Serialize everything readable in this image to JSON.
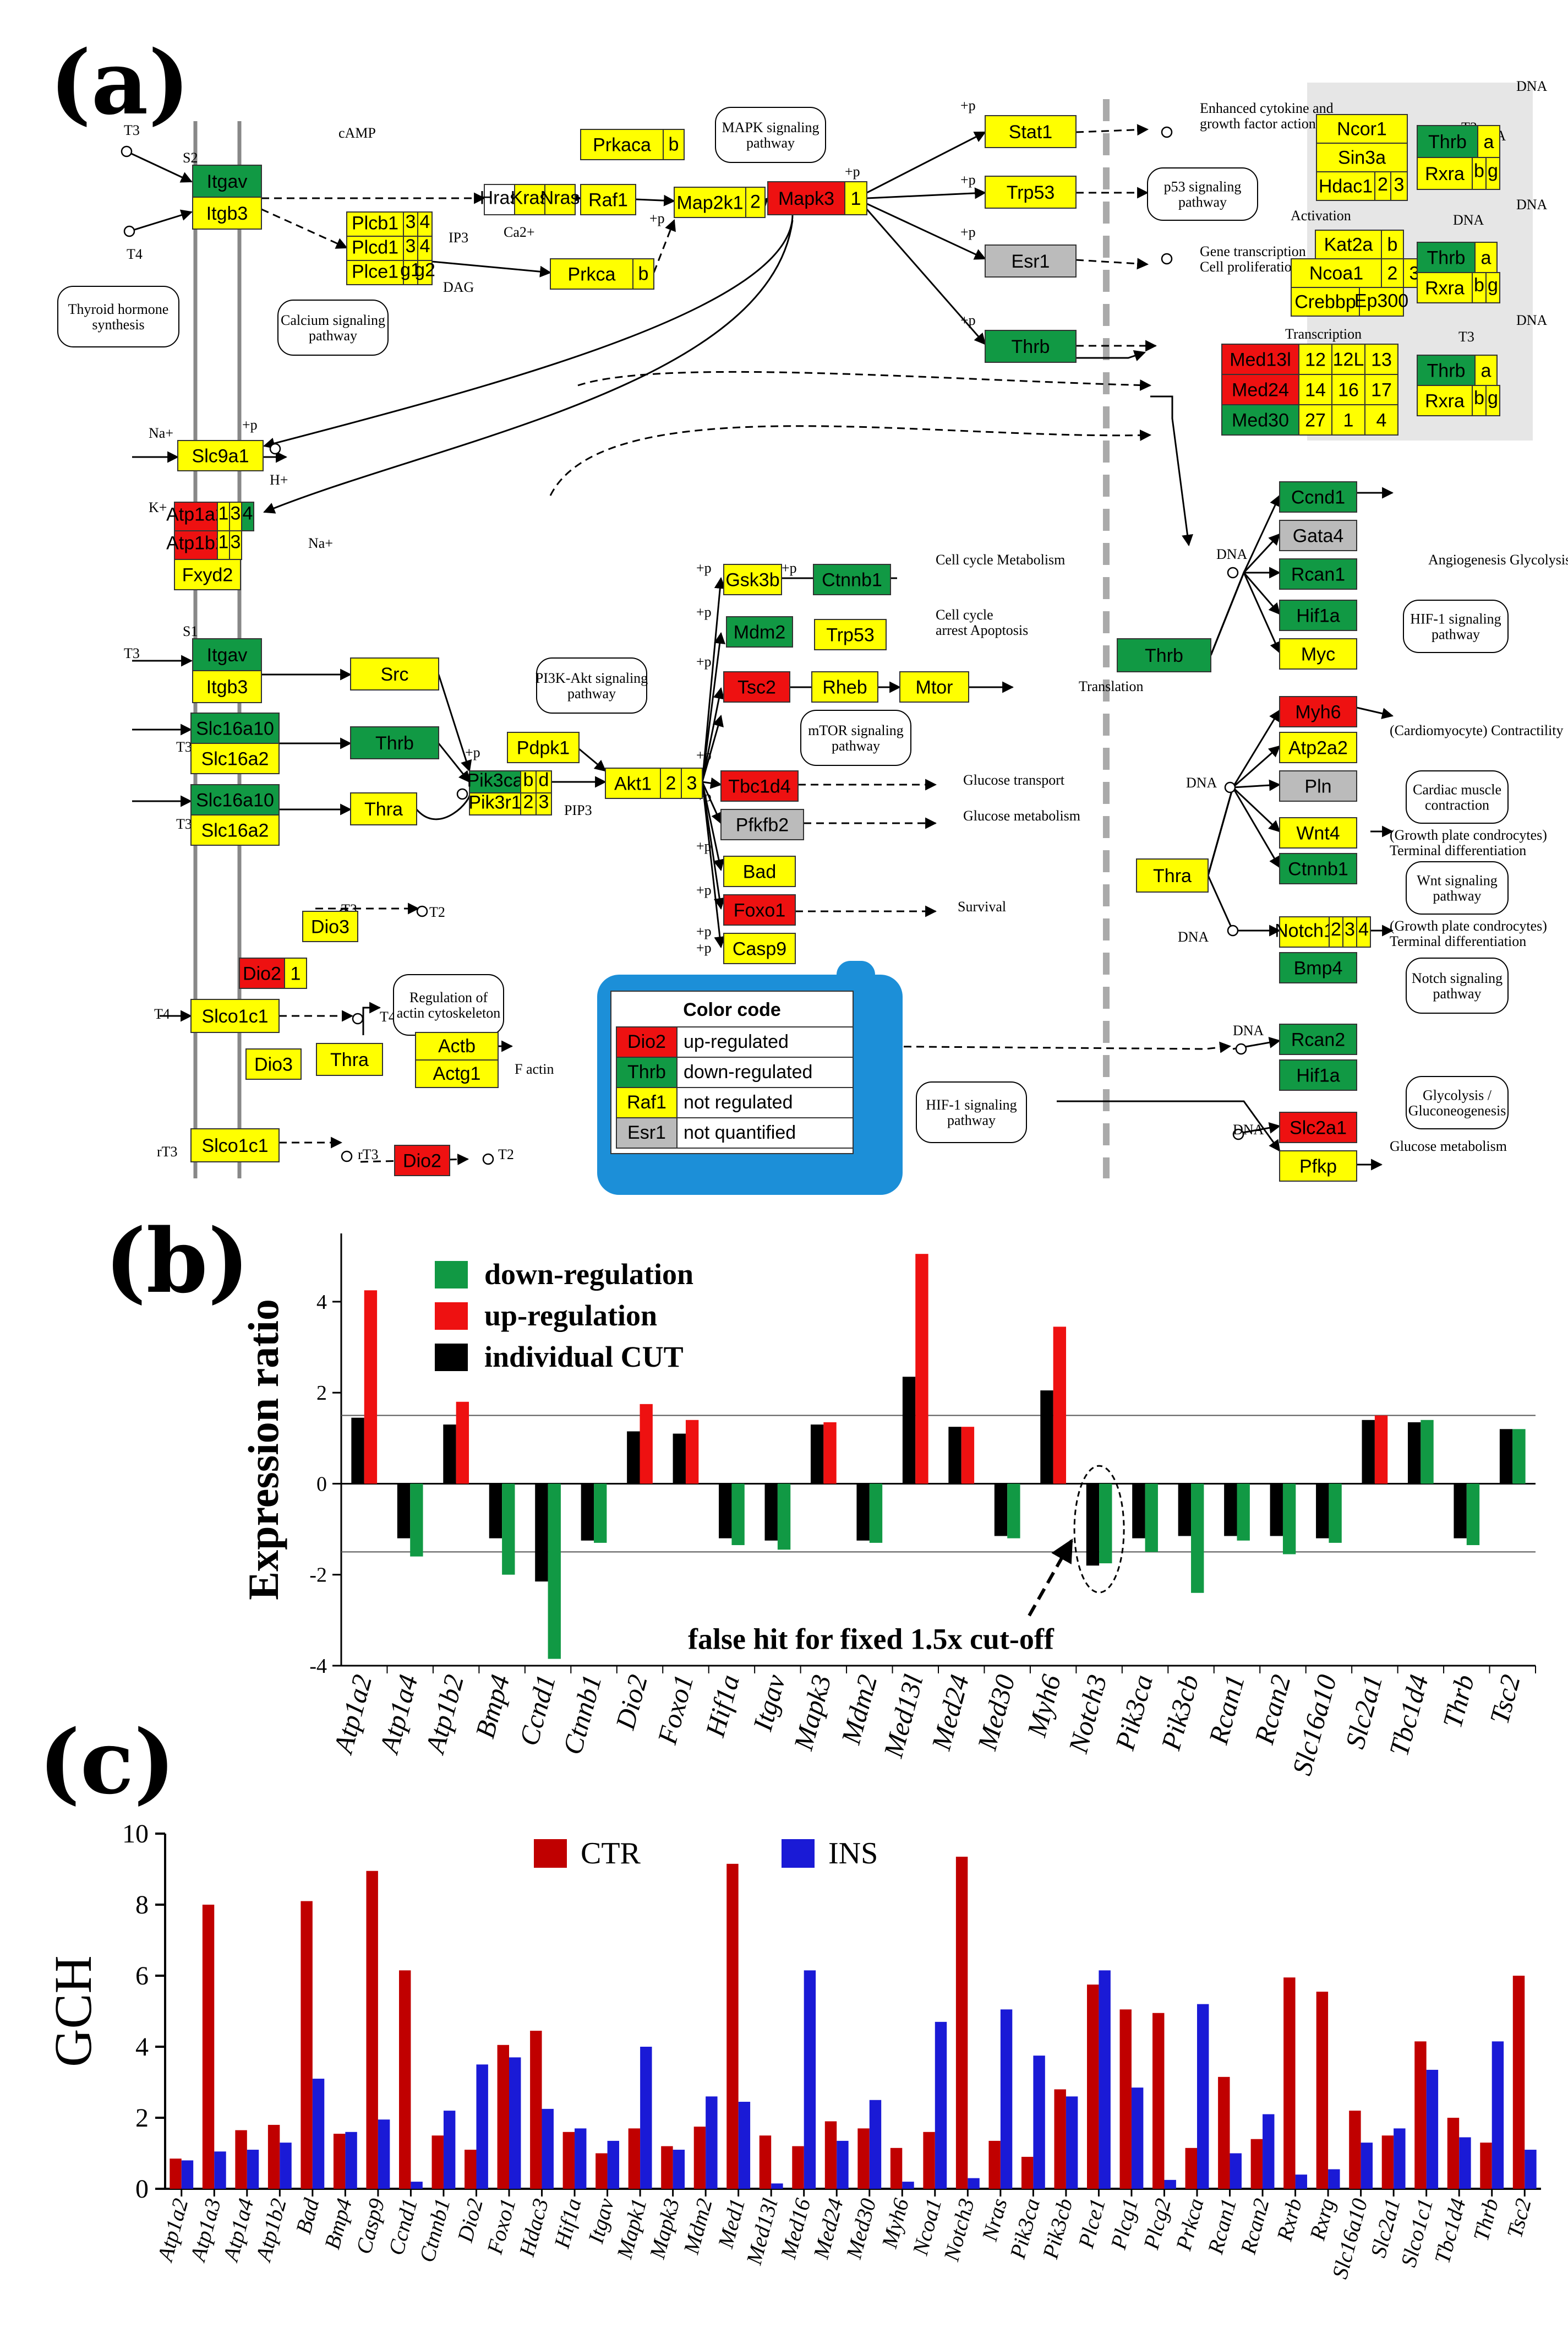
{
  "panels": {
    "a": "(a)",
    "b": "(b)",
    "c": "(c)"
  },
  "colors": {
    "up": "#ee1111",
    "down": "#119944",
    "notreg": "#ffff00",
    "notquant": "#bbbbbb",
    "cut": "#000000",
    "ctr": "#c00000",
    "ins": "#1a1ad6"
  },
  "pathway": {
    "legend": {
      "title": "Color code",
      "items": [
        {
          "gene": "Dio2",
          "label": "up-regulated",
          "status": "up"
        },
        {
          "gene": "Thrb",
          "label": "down-regulated",
          "status": "down"
        },
        {
          "gene": "Raf1",
          "label": "not regulated",
          "status": "notreg"
        },
        {
          "gene": "Esr1",
          "label": "not quantified",
          "status": "notquant"
        }
      ]
    },
    "genes": [
      {
        "t": "Itgav",
        "s": "down"
      },
      {
        "t": "Itgb3",
        "s": "notreg"
      },
      {
        "t": "Slc9a1",
        "s": "notreg"
      },
      {
        "t": "Atp1a2",
        "s": "up"
      },
      {
        "t": "1",
        "s": "notreg"
      },
      {
        "t": "3",
        "s": "notreg"
      },
      {
        "t": "4",
        "s": "down"
      },
      {
        "t": "Atp1b2",
        "s": "up"
      },
      {
        "t": "1",
        "s": "notreg"
      },
      {
        "t": "3",
        "s": "notreg"
      },
      {
        "t": "Fxyd2",
        "s": "notreg"
      },
      {
        "t": "Itgav",
        "s": "down"
      },
      {
        "t": "Itgb3",
        "s": "notreg"
      },
      {
        "t": "Slc16a10",
        "s": "down"
      },
      {
        "t": "Slc16a2",
        "s": "notreg"
      },
      {
        "t": "Slc16a10",
        "s": "down"
      },
      {
        "t": "Slc16a2",
        "s": "notreg"
      },
      {
        "t": "Slco1c1",
        "s": "notreg"
      },
      {
        "t": "Slco1c1",
        "s": "notreg"
      },
      {
        "t": "Dio2",
        "s": "up"
      },
      {
        "t": "1",
        "s": "notreg"
      },
      {
        "t": "Dio3",
        "s": "notreg"
      },
      {
        "t": "Dio3",
        "s": "notreg"
      },
      {
        "t": "Dio2",
        "s": "up"
      },
      {
        "t": "Thrb",
        "s": "down"
      },
      {
        "t": "Thra",
        "s": "notreg"
      },
      {
        "t": "Src",
        "s": "notreg"
      },
      {
        "t": "Thra",
        "s": "notreg"
      },
      {
        "t": "Actb",
        "s": "notreg"
      },
      {
        "t": "Actg1",
        "s": "notreg"
      },
      {
        "t": "Plcb1",
        "s": "notreg"
      },
      {
        "t": "3",
        "s": "notreg"
      },
      {
        "t": "4",
        "s": "notreg"
      },
      {
        "t": "Plcd1",
        "s": "notreg"
      },
      {
        "t": "3",
        "s": "notreg"
      },
      {
        "t": "4",
        "s": "notreg"
      },
      {
        "t": "Plce1",
        "s": "notreg"
      },
      {
        "t": "g1",
        "s": "notreg"
      },
      {
        "t": "g2",
        "s": "notreg"
      },
      {
        "t": "Prkca",
        "s": "notreg"
      },
      {
        "t": "b",
        "s": "notreg"
      },
      {
        "t": "Prkaca",
        "s": "notreg"
      },
      {
        "t": "b",
        "s": "notreg"
      },
      {
        "t": "Hras",
        "s": "white"
      },
      {
        "t": "Kras",
        "s": "notreg"
      },
      {
        "t": "Nras",
        "s": "notreg"
      },
      {
        "t": "Raf1",
        "s": "notreg"
      },
      {
        "t": "Map2k1",
        "s": "notreg"
      },
      {
        "t": "2",
        "s": "notreg"
      },
      {
        "t": "Mapk3",
        "s": "up"
      },
      {
        "t": "1",
        "s": "notreg"
      },
      {
        "t": "Stat1",
        "s": "notreg"
      },
      {
        "t": "Trp53",
        "s": "notreg"
      },
      {
        "t": "Esr1",
        "s": "notquant"
      },
      {
        "t": "Thrb",
        "s": "down"
      },
      {
        "t": "Pik3ca",
        "s": "down"
      },
      {
        "t": "b",
        "s": "notreg"
      },
      {
        "t": "d",
        "s": "notreg"
      },
      {
        "t": "Pik3r1",
        "s": "notreg"
      },
      {
        "t": "2",
        "s": "notreg"
      },
      {
        "t": "3",
        "s": "notreg"
      },
      {
        "t": "Pdpk1",
        "s": "notreg"
      },
      {
        "t": "Akt1",
        "s": "notreg"
      },
      {
        "t": "2",
        "s": "notreg"
      },
      {
        "t": "3",
        "s": "notreg"
      },
      {
        "t": "Gsk3b",
        "s": "notreg"
      },
      {
        "t": "Ctnnb1",
        "s": "down"
      },
      {
        "t": "Mdm2",
        "s": "down"
      },
      {
        "t": "Trp53",
        "s": "notreg"
      },
      {
        "t": "Tsc2",
        "s": "up"
      },
      {
        "t": "Rheb",
        "s": "notreg"
      },
      {
        "t": "Mtor",
        "s": "notreg"
      },
      {
        "t": "Tbc1d4",
        "s": "up"
      },
      {
        "t": "Pfkfb2",
        "s": "notquant"
      },
      {
        "t": "Bad",
        "s": "notreg"
      },
      {
        "t": "Foxo1",
        "s": "up"
      },
      {
        "t": "Casp9",
        "s": "notreg"
      },
      {
        "t": "Ncor1",
        "s": "notreg"
      },
      {
        "t": "Sin3a",
        "s": "notreg"
      },
      {
        "t": "Hdac1",
        "s": "notreg"
      },
      {
        "t": "2",
        "s": "notreg"
      },
      {
        "t": "3",
        "s": "notreg"
      },
      {
        "t": "Thrb",
        "s": "down"
      },
      {
        "t": "a",
        "s": "notreg"
      },
      {
        "t": "Rxra",
        "s": "notreg"
      },
      {
        "t": "b",
        "s": "notreg"
      },
      {
        "t": "g",
        "s": "notreg"
      },
      {
        "t": "Kat2a",
        "s": "notreg"
      },
      {
        "t": "b",
        "s": "notreg"
      },
      {
        "t": "Ncoa1",
        "s": "notreg"
      },
      {
        "t": "2",
        "s": "notreg"
      },
      {
        "t": "3",
        "s": "notreg"
      },
      {
        "t": "Crebbp",
        "s": "notreg"
      },
      {
        "t": "Ep300",
        "s": "notreg"
      },
      {
        "t": "Thrb",
        "s": "down"
      },
      {
        "t": "a",
        "s": "notreg"
      },
      {
        "t": "Rxra",
        "s": "notreg"
      },
      {
        "t": "b",
        "s": "notreg"
      },
      {
        "t": "g",
        "s": "notreg"
      },
      {
        "t": "Med13l",
        "s": "up"
      },
      {
        "t": "12",
        "s": "notreg"
      },
      {
        "t": "12L",
        "s": "notreg"
      },
      {
        "t": "13",
        "s": "notreg"
      },
      {
        "t": "Med24",
        "s": "up"
      },
      {
        "t": "14",
        "s": "notreg"
      },
      {
        "t": "16",
        "s": "notreg"
      },
      {
        "t": "17",
        "s": "notreg"
      },
      {
        "t": "Med30",
        "s": "down"
      },
      {
        "t": "27",
        "s": "notreg"
      },
      {
        "t": "1",
        "s": "notreg"
      },
      {
        "t": "4",
        "s": "notreg"
      },
      {
        "t": "Thrb",
        "s": "down"
      },
      {
        "t": "a",
        "s": "notreg"
      },
      {
        "t": "Rxra",
        "s": "notreg"
      },
      {
        "t": "b",
        "s": "notreg"
      },
      {
        "t": "g",
        "s": "notreg"
      },
      {
        "t": "Thrb",
        "s": "down"
      },
      {
        "t": "Thra",
        "s": "notreg"
      },
      {
        "t": "Ccnd1",
        "s": "down"
      },
      {
        "t": "Gata4",
        "s": "notquant"
      },
      {
        "t": "Rcan1",
        "s": "down"
      },
      {
        "t": "Hif1a",
        "s": "down"
      },
      {
        "t": "Myc",
        "s": "notreg"
      },
      {
        "t": "Myh6",
        "s": "up"
      },
      {
        "t": "Atp2a2",
        "s": "notreg"
      },
      {
        "t": "Pln",
        "s": "notquant"
      },
      {
        "t": "Wnt4",
        "s": "notreg"
      },
      {
        "t": "Ctnnb1",
        "s": "down"
      },
      {
        "t": "Notch1",
        "s": "notreg"
      },
      {
        "t": "2",
        "s": "notreg"
      },
      {
        "t": "3",
        "s": "notreg"
      },
      {
        "t": "4",
        "s": "notreg"
      },
      {
        "t": "Bmp4",
        "s": "down"
      },
      {
        "t": "Rcan2",
        "s": "down"
      },
      {
        "t": "Hif1a",
        "s": "down"
      },
      {
        "t": "Slc2a1",
        "s": "up"
      },
      {
        "t": "Pfkp",
        "s": "notreg"
      }
    ],
    "notes": [
      "T3",
      "T4",
      "S2",
      "S1",
      "T3",
      "T3",
      "T3",
      "T4",
      "rT3",
      "T3",
      "T2",
      "rT3",
      "T2",
      "T4",
      "F actin",
      "Na+",
      "H+",
      "K+",
      "Na+",
      "cAMP",
      "IP3",
      "Ca2+",
      "DAG",
      "PIP3",
      "+p",
      "+p",
      "+p",
      "+p",
      "+p",
      "+p",
      "+p",
      "+p",
      "+p",
      "+p",
      "+p",
      "+p",
      "+p",
      "+p",
      "+p",
      "+p",
      "+p",
      "+p",
      "+p",
      "DNA",
      "DNA",
      "DNA",
      "DNA",
      "DNA",
      "DNA",
      "DNA",
      "DNA",
      "DNA",
      "DNA",
      "T3",
      "T3",
      "T3",
      "Activation",
      "Transcription",
      "Enhanced cytokine and growth factor action",
      "Gene transcription Cell proliferation",
      "Cell cycle Metabolism",
      "Cell cycle arrest Apoptosis",
      "Translation",
      "Glucose transport",
      "Glucose metabolism",
      "Survival",
      "Angiogenesis Glycolysis",
      "(Cardiomyocyte) Contractility",
      "(Growth plate condrocytes) Terminal differentiation",
      "(Growth plate condrocytes) Terminal differentiation",
      "Glucose metabolism"
    ],
    "pathway_boxes": [
      "Thyroid hormone synthesis",
      "Calcium signaling pathway",
      "MAPK signaling pathway",
      "p53 signaling pathway",
      "PI3K-Akt signaling pathway",
      "mTOR signaling pathway",
      "Regulation of actin cytoskeleton",
      "HIF-1 signaling pathway",
      "HIF-1 signaling pathway",
      "Cardiac muscle contraction",
      "Wnt signaling pathway",
      "Notch signaling pathway",
      "Glycolysis / Gluconeogenesis"
    ]
  },
  "chart_data": [
    {
      "type": "bar",
      "ylabel": "Expression ratio",
      "xlabel": "",
      "ylim": [
        -4,
        5.5
      ],
      "yticks": [
        -4,
        -2,
        0,
        2,
        4
      ],
      "threshold_lines": [
        1.5,
        -1.5
      ],
      "legend": {
        "position": "top-left",
        "items": [
          {
            "name": "down-regulation",
            "color": "#119944"
          },
          {
            "name": "up-regulation",
            "color": "#ee1111"
          },
          {
            "name": "individual CUT",
            "color": "#000000"
          }
        ]
      },
      "annotation": "false hit for fixed 1.5x cut-off",
      "categories": [
        "Atp1a2",
        "Atp1a4",
        "Atp1b2",
        "Bmp4",
        "Ccnd1",
        "Ctnnb1",
        "Dio2",
        "Foxo1",
        "Hif1a",
        "Itgav",
        "Mapk3",
        "Mdm2",
        "Med13l",
        "Med24",
        "Med30",
        "Myh6",
        "Notch3",
        "Pik3ca",
        "Pik3cb",
        "Rcan1",
        "Rcan2",
        "Slc16a10",
        "Slc2a1",
        "Tbc1d4",
        "Thrb",
        "Tsc2"
      ],
      "series": [
        {
          "name": "individual CUT",
          "values": [
            1.45,
            -1.2,
            1.3,
            -1.2,
            -2.15,
            -1.25,
            1.15,
            1.1,
            -1.2,
            -1.25,
            1.3,
            -1.25,
            2.35,
            1.25,
            -1.15,
            2.05,
            -1.8,
            -1.2,
            -1.15,
            -1.15,
            -1.15,
            -1.2,
            1.4,
            1.35,
            -1.2,
            1.2
          ]
        },
        {
          "name": "expression ratio",
          "values": [
            4.25,
            -1.6,
            1.8,
            -2.0,
            -3.85,
            -1.3,
            1.75,
            1.4,
            -1.35,
            -1.45,
            1.35,
            -1.3,
            5.05,
            1.25,
            -1.2,
            3.45,
            -1.75,
            -1.5,
            -2.4,
            -1.25,
            -1.55,
            -1.3,
            1.5,
            1.4,
            -1.35,
            1.2
          ],
          "colors": [
            "up",
            "down",
            "up",
            "down",
            "down",
            "down",
            "up",
            "up",
            "down",
            "down",
            "up",
            "down",
            "up",
            "up",
            "down",
            "up",
            "down",
            "down",
            "down",
            "down",
            "down",
            "down",
            "up",
            "down",
            "down",
            "down"
          ]
        }
      ]
    },
    {
      "type": "bar",
      "ylabel": "GCH",
      "xlabel": "",
      "ylim": [
        0,
        10
      ],
      "yticks": [
        0,
        2,
        4,
        6,
        8,
        10
      ],
      "legend": {
        "position": "top",
        "items": [
          {
            "name": "CTR",
            "color": "#c00000"
          },
          {
            "name": "INS",
            "color": "#1a1ad6"
          }
        ]
      },
      "categories": [
        "Atp1a2",
        "Atp1a3",
        "Atp1a4",
        "Atp1b2",
        "Bad",
        "Bmp4",
        "Casp9",
        "Ccnd1",
        "Ctnnb1",
        "Dio2",
        "Foxo1",
        "Hdac3",
        "Hif1a",
        "Itgav",
        "Mapk1",
        "Mapk3",
        "Mdm2",
        "Med1",
        "Med13l",
        "Med16",
        "Med24",
        "Med30",
        "Myh6",
        "Ncoa1",
        "Notch3",
        "Nras",
        "Pik3ca",
        "Pik3cb",
        "Plce1",
        "Plcg1",
        "Plcg2",
        "Prkca",
        "Rcan1",
        "Rcan2",
        "Rxrb",
        "Rxrg",
        "Slc16a10",
        "Slc2a1",
        "Slco1c1",
        "Tbc1d4",
        "Thrb",
        "Tsc2"
      ],
      "series": [
        {
          "name": "CTR",
          "values": [
            0.85,
            8.0,
            1.65,
            1.8,
            8.1,
            1.55,
            8.95,
            6.15,
            1.5,
            1.1,
            4.05,
            4.45,
            1.6,
            1.0,
            1.7,
            1.2,
            1.75,
            9.15,
            1.5,
            1.2,
            1.9,
            1.7,
            1.15,
            1.6,
            9.35,
            1.35,
            0.9,
            2.8,
            5.75,
            5.05,
            4.95,
            1.15,
            3.15,
            1.4,
            5.95,
            5.55,
            2.2,
            1.5,
            4.15,
            2.0,
            1.3,
            6.0
          ]
        },
        {
          "name": "INS",
          "values": [
            0.8,
            1.05,
            1.1,
            1.3,
            3.1,
            1.6,
            1.95,
            0.2,
            2.2,
            3.5,
            3.7,
            2.25,
            1.7,
            1.35,
            4.0,
            1.1,
            2.6,
            2.45,
            0.15,
            6.15,
            1.35,
            2.5,
            0.2,
            4.7,
            0.3,
            5.05,
            3.75,
            2.6,
            6.15,
            2.85,
            0.25,
            5.2,
            1.0,
            2.1,
            0.4,
            0.55,
            1.3,
            1.7,
            3.35,
            1.45,
            4.15,
            1.1
          ]
        }
      ]
    }
  ]
}
